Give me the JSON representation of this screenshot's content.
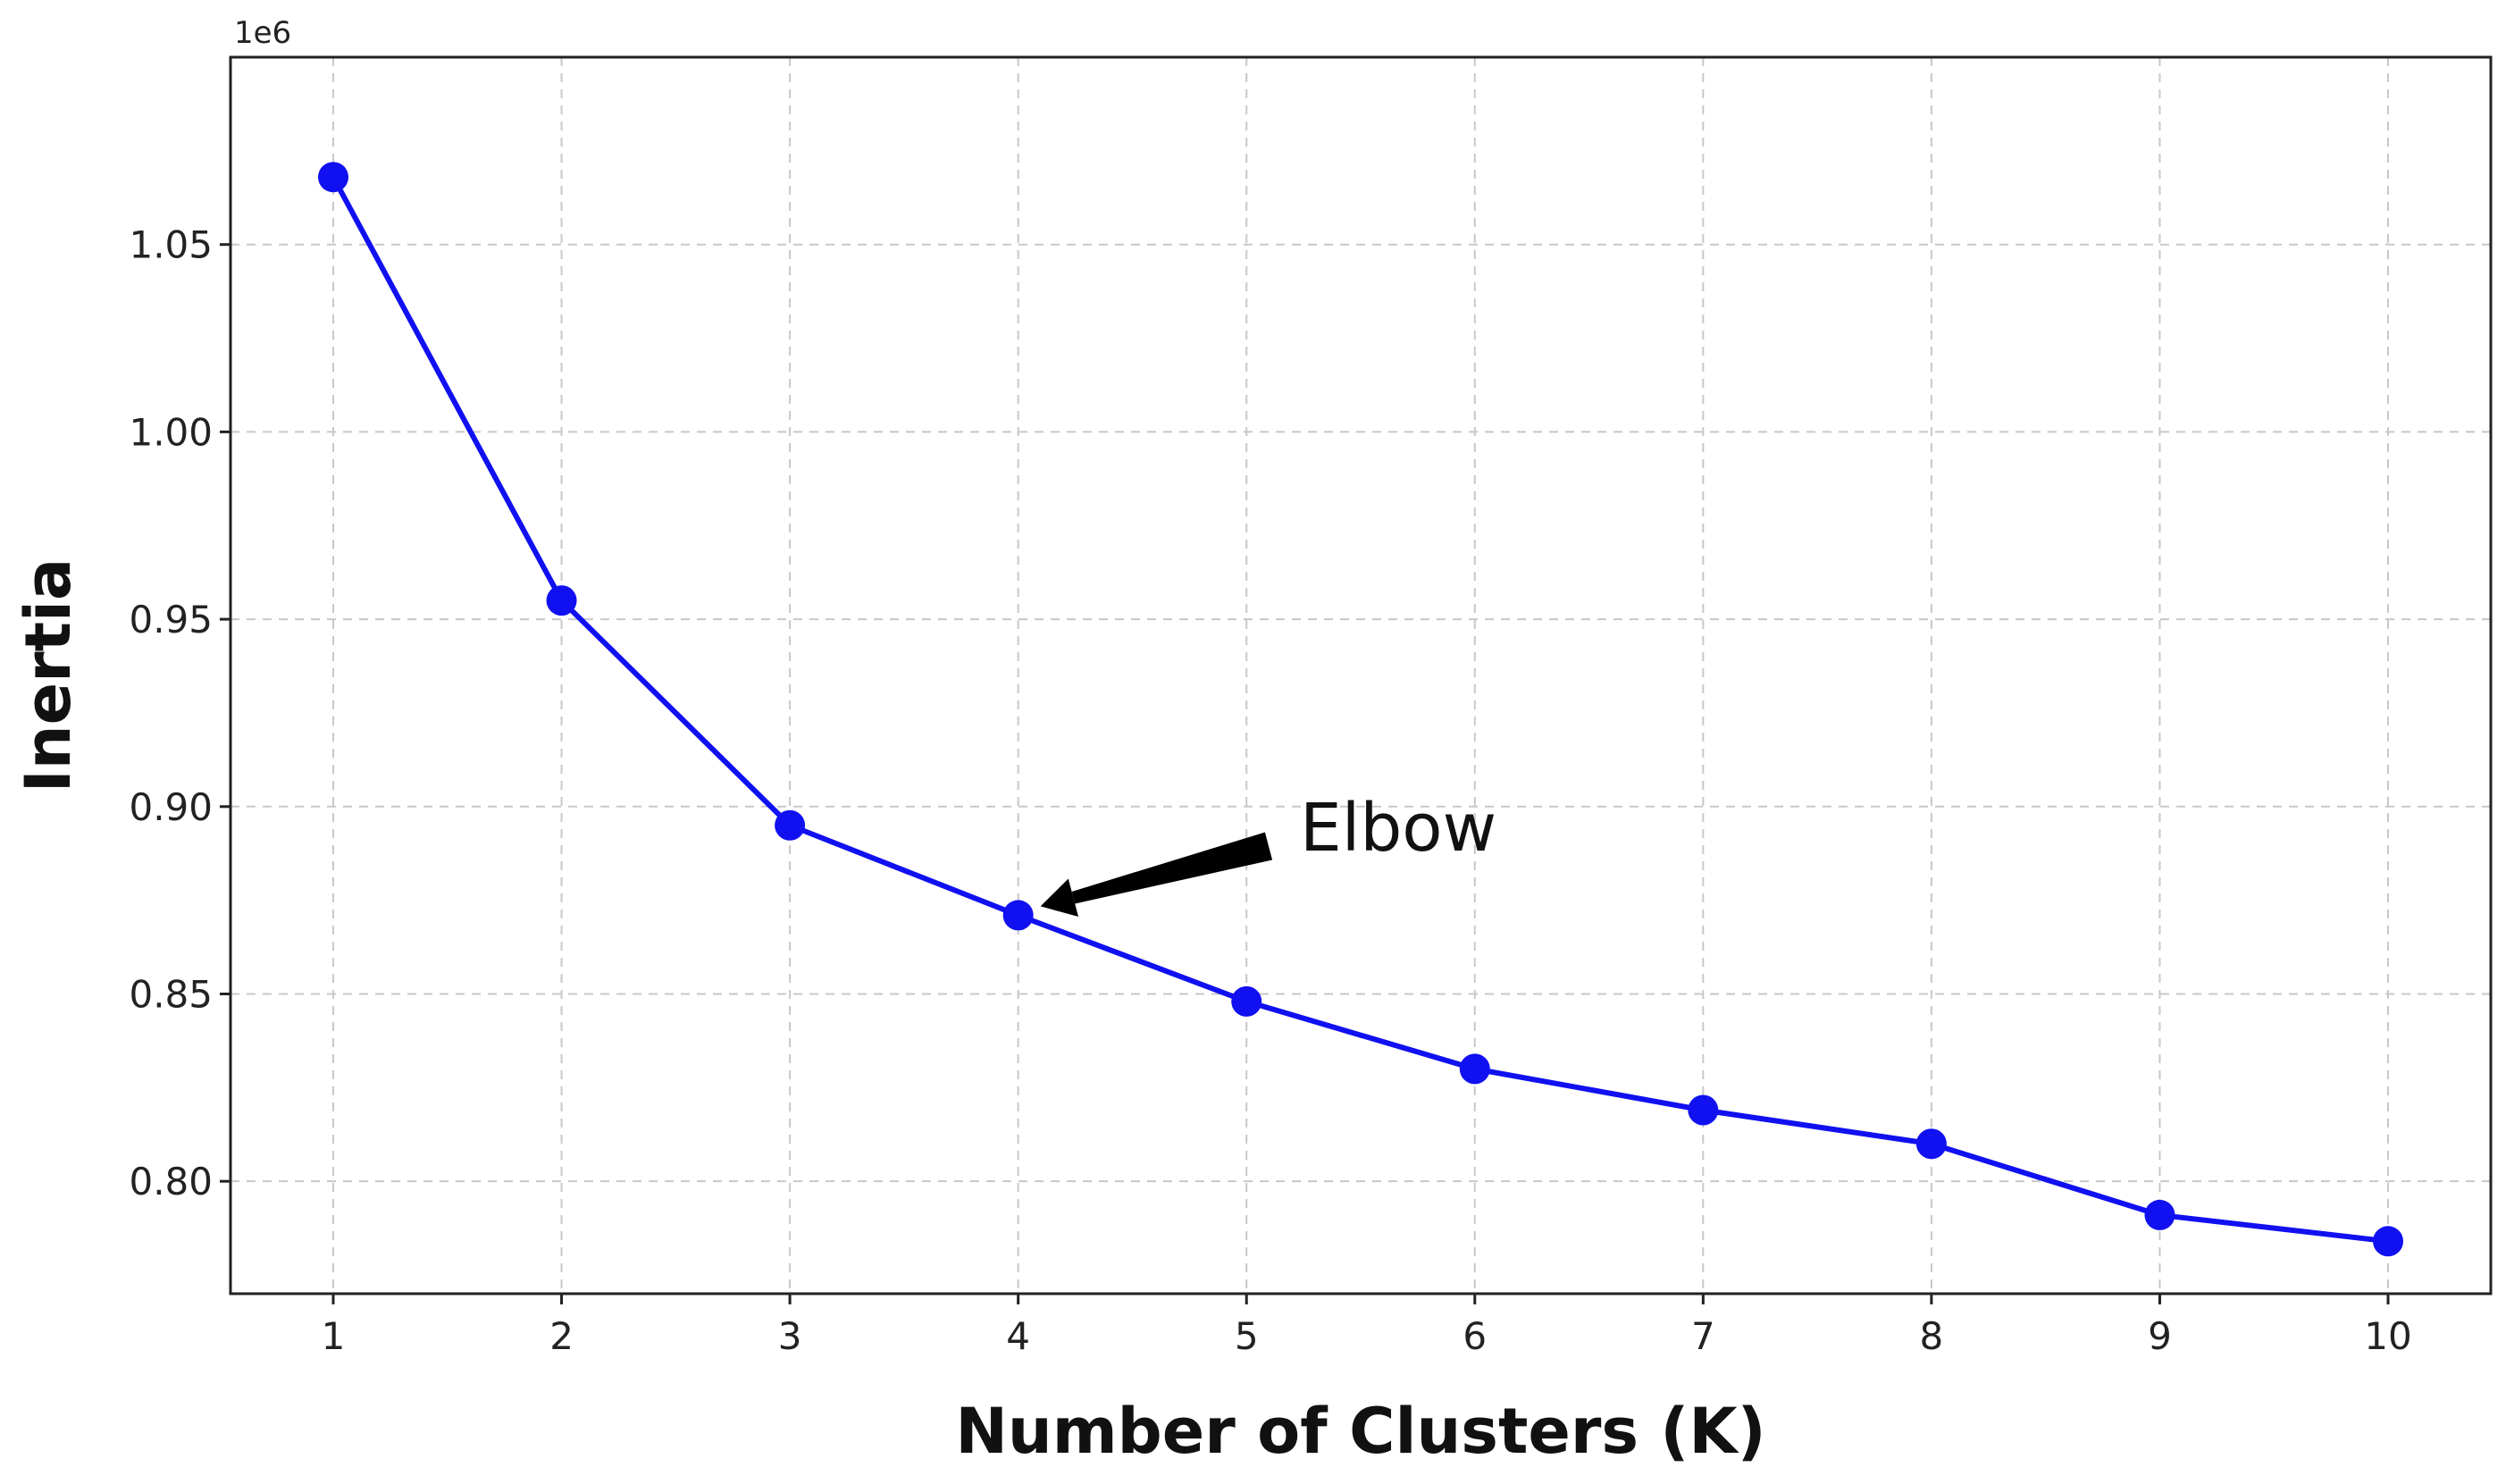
{
  "chart_data": {
    "type": "line",
    "title": "",
    "xlabel": "Number of Clusters (K)",
    "ylabel": "Inertia",
    "y_offset_label": "1e6",
    "x": [
      1,
      2,
      3,
      4,
      5,
      6,
      7,
      8,
      9,
      10
    ],
    "x_ticks": [
      "1",
      "2",
      "3",
      "4",
      "5",
      "6",
      "7",
      "8",
      "9",
      "10"
    ],
    "y_ticks": [
      "0.80",
      "0.85",
      "0.90",
      "0.95",
      "1.00",
      "1.05"
    ],
    "series": [
      {
        "values": [
          1.068,
          0.955,
          0.895,
          0.871,
          0.848,
          0.83,
          0.819,
          0.81,
          0.791,
          0.784
        ],
        "color": "#1010f0",
        "marker": "circle"
      }
    ],
    "xlim": [
      0.55,
      10.45
    ],
    "ylim": [
      0.77,
      1.1
    ],
    "y_tick_values": [
      0.8,
      0.85,
      0.9,
      0.95,
      1.0,
      1.05
    ],
    "grid": true,
    "grid_style": "dashed",
    "annotation": {
      "text": "Elbow",
      "point_x": 4,
      "point_y": 0.871
    }
  }
}
